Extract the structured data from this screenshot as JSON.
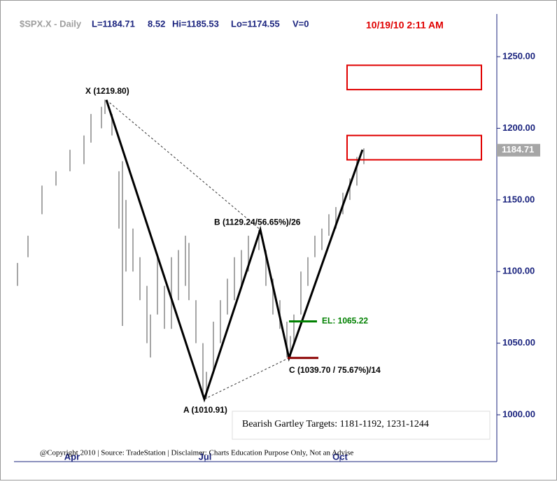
{
  "header": {
    "symbol": "$SPX.X - Daily",
    "last": "L=1184.71",
    "change": "8.52",
    "high": "Hi=1185.53",
    "low": "Lo=1174.55",
    "volume": "V=0",
    "timestamp": "10/19/10 2:11 AM"
  },
  "chart_data": {
    "type": "range_bar",
    "color": "#a6a6a6",
    "x": [
      0,
      3,
      7,
      11,
      15,
      19,
      21,
      24,
      25,
      27,
      29,
      30,
      31,
      33,
      35,
      37,
      38,
      40,
      42,
      44,
      46,
      48,
      49,
      51,
      53,
      54,
      56,
      58,
      60,
      62,
      64,
      66,
      69,
      71,
      73,
      75,
      77,
      78,
      79,
      81,
      83,
      85,
      87,
      89,
      91,
      93,
      95,
      97,
      99
    ],
    "high": [
      1106,
      1125,
      1160,
      1170,
      1185,
      1195,
      1210,
      1215,
      1220,
      1210,
      1170,
      1177,
      1150,
      1130,
      1110,
      1090,
      1070,
      1110,
      1090,
      1110,
      1115,
      1125,
      1120,
      1080,
      1050,
      1030,
      1065,
      1080,
      1095,
      1110,
      1115,
      1125,
      1129,
      1115,
      1095,
      1080,
      1065,
      1055,
      1070,
      1100,
      1110,
      1125,
      1130,
      1140,
      1145,
      1155,
      1165,
      1180,
      1186
    ],
    "low": [
      1090,
      1110,
      1140,
      1160,
      1170,
      1175,
      1190,
      1200,
      1210,
      1195,
      1130,
      1062,
      1100,
      1100,
      1080,
      1050,
      1040,
      1070,
      1060,
      1060,
      1080,
      1090,
      1080,
      1050,
      1015,
      1011,
      1030,
      1050,
      1070,
      1080,
      1090,
      1100,
      1115,
      1090,
      1070,
      1060,
      1040,
      1040,
      1050,
      1070,
      1090,
      1110,
      1115,
      1125,
      1130,
      1140,
      1150,
      1160,
      1175
    ],
    "xlim": [
      -1,
      137
    ],
    "ylim": [
      967.3,
      1279.8
    ],
    "xticks": [
      {
        "value": 15.6,
        "label": "Apr"
      },
      {
        "value": 53.6,
        "label": "Jul"
      },
      {
        "value": 92.2,
        "label": "Oct"
      }
    ],
    "yticks": [
      {
        "value": 1000,
        "label": "1000.00"
      },
      {
        "value": 1050,
        "label": "1050.00"
      },
      {
        "value": 1100,
        "label": "1100.00"
      },
      {
        "value": 1150,
        "label": "1150.00"
      },
      {
        "value": 1200,
        "label": "1200.00"
      },
      {
        "value": 1250,
        "label": "1250.00"
      }
    ],
    "last_price": {
      "value": 1184.71,
      "label": "1184.71"
    },
    "pattern": [
      {
        "label": "X (1219.80)",
        "x": 25.4,
        "value": 1219.8
      },
      {
        "label": "A (1010.91)",
        "x": 53.4,
        "value": 1010.91
      },
      {
        "label": "B (1129.24/56.65%)/26",
        "x": 69.4,
        "value": 1129.24
      },
      {
        "label": "C (1039.70 / 75.67%)/14",
        "x": 77.6,
        "value": 1039.7
      },
      {
        "x": 98.6,
        "value": 1185
      }
    ],
    "entry": {
      "label": "EL: 1065.22",
      "value": 1065.22,
      "color": "#008000"
    },
    "stop": {
      "value": 1039.7,
      "color": "#8b0000"
    },
    "target_zones": [
      [
        1178,
        1195
      ],
      [
        1227,
        1244
      ]
    ],
    "zone_color": "#e00000",
    "note": "Bearish Gartley Targets: 1181-1192, 1231-1244"
  },
  "footer": "@Copyright 2010 | Source: TradeStation | Disclaimer: Charts Education Purpose Only, Not an Advise"
}
